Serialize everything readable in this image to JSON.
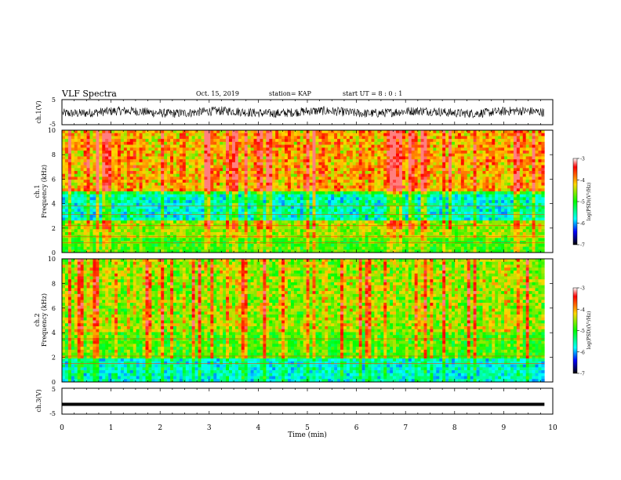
{
  "header": {
    "title": "VLF Spectra",
    "date": "Oct. 15, 2019",
    "station": "station= KAP",
    "start": "start UT =  8 : 0 : 1"
  },
  "chart_data": [
    {
      "type": "line",
      "panel": "ch1-waveform",
      "ylabel": "ch.1(V)",
      "ylim": [
        -5,
        5
      ],
      "yticks": [
        "5",
        "-5"
      ],
      "description_of_trace": "noisy waveform between about -2 and 2 V over 0–9.8 min"
    },
    {
      "type": "heatmap",
      "panel": "ch1-spectrogram",
      "ylabel": "ch.1\nFrequency (kHz)",
      "ylabel_line1": "ch.1",
      "ylabel_line2": "Frequency (kHz)",
      "ylim": [
        0,
        10
      ],
      "yticks": [
        "0",
        "2",
        "4",
        "6",
        "8",
        "10"
      ],
      "x_end": 9.83
    },
    {
      "type": "heatmap",
      "panel": "ch2-spectrogram",
      "ylabel_line1": "ch.2",
      "ylabel_line2": "Frequency (kHz)",
      "ylim": [
        0,
        10
      ],
      "yticks": [
        "0",
        "2",
        "4",
        "6",
        "8",
        "10"
      ],
      "x_end": 9.83
    },
    {
      "type": "line",
      "panel": "ch3-waveform",
      "ylabel": "ch.3(V)",
      "ylim": [
        -5,
        5
      ],
      "yticks": [
        "5",
        "-5"
      ],
      "constant_value": -1.2
    }
  ],
  "xaxis": {
    "xlabel": "Time (min)",
    "xlim": [
      0,
      10
    ],
    "ticks": [
      "0",
      "1",
      "2",
      "3",
      "4",
      "5",
      "6",
      "7",
      "8",
      "9",
      "10"
    ]
  },
  "colorbar": {
    "label": "log(PSD)(V²/Hz)",
    "range": [
      -7,
      -3
    ],
    "ticks": [
      "-3",
      "-4",
      "-5",
      "-6",
      "-7"
    ]
  },
  "colors": {
    "low": "#000080",
    "mid": "#00ff00",
    "high": "#ff0000",
    "trace": "#000000"
  }
}
